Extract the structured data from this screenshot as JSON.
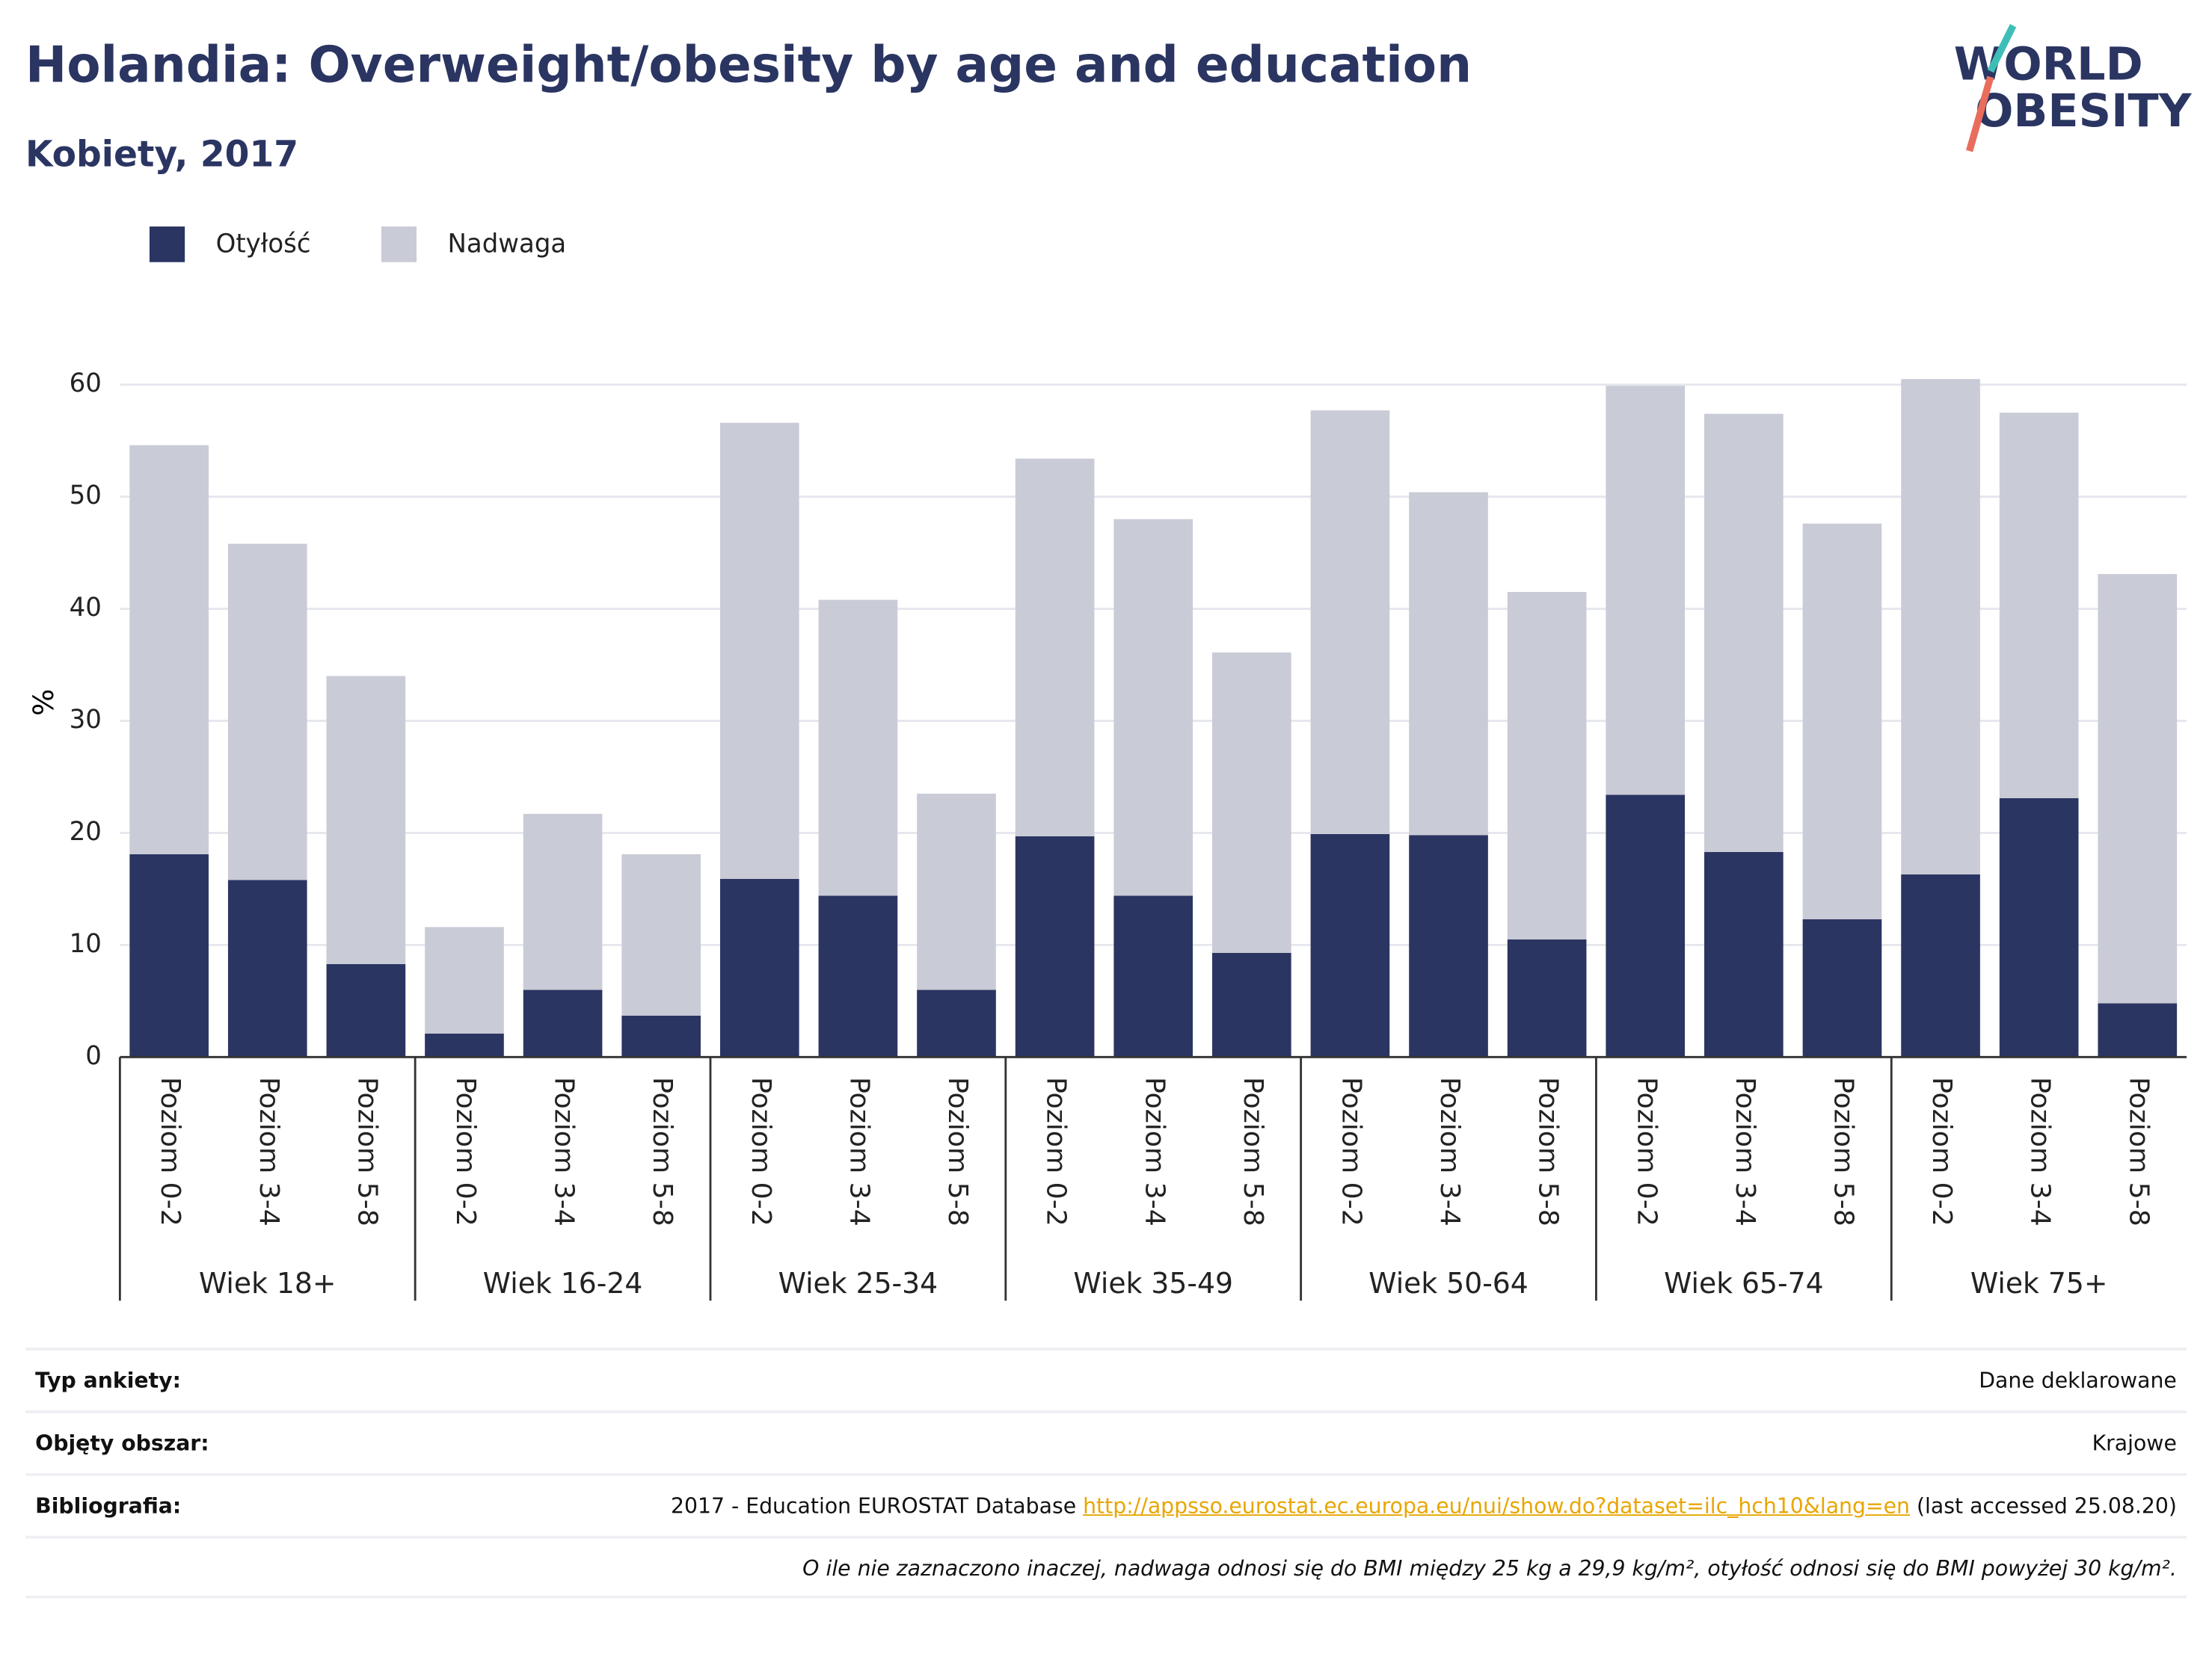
{
  "logo": [
    "WORLD",
    "OBESITY"
  ],
  "chart_data": {
    "type": "stacked_bar",
    "title": "Holandia: Overweight/obesity by age and education",
    "subtitle": "Kobiety, 2017",
    "ylabel": "%",
    "groups": [
      "Wiek 18+",
      "Wiek 16-24",
      "Wiek 25-34",
      "Wiek 35-49",
      "Wiek 50-64",
      "Wiek 65-74",
      "Wiek 75+"
    ],
    "categories": [
      "Poziom 0-2",
      "Poziom 3-4",
      "Poziom 5-8",
      "Poziom 0-2",
      "Poziom 3-4",
      "Poziom 5-8",
      "Poziom 0-2",
      "Poziom 3-4",
      "Poziom 5-8",
      "Poziom 0-2",
      "Poziom 3-4",
      "Poziom 5-8",
      "Poziom 0-2",
      "Poziom 3-4",
      "Poziom 5-8",
      "Poziom 0-2",
      "Poziom 3-4",
      "Poziom 5-8",
      "Poziom 0-2",
      "Poziom 3-4",
      "Poziom 5-8"
    ],
    "series": [
      {
        "name": "Otyłość",
        "color": "#2b3562",
        "values": [
          18.1,
          15.8,
          8.3,
          2.1,
          6.0,
          3.7,
          15.9,
          14.4,
          6.0,
          19.7,
          14.4,
          9.3,
          19.9,
          19.8,
          10.5,
          23.4,
          18.3,
          12.3,
          16.3,
          23.1,
          4.8
        ]
      },
      {
        "name": "Nadwaga",
        "color": "#c9cbd6",
        "values": [
          36.5,
          30.0,
          25.7,
          9.5,
          15.7,
          14.4,
          40.7,
          26.4,
          17.5,
          33.7,
          33.6,
          26.8,
          37.8,
          30.6,
          31.0,
          36.5,
          39.1,
          35.3,
          44.2,
          34.4,
          38.3
        ]
      }
    ],
    "ylim": [
      0,
      60
    ],
    "yticks": [
      0,
      10,
      20,
      30,
      40,
      50,
      60
    ],
    "grid": true,
    "legend": "top-left"
  },
  "footer": {
    "rows": [
      {
        "label": "Typ ankiety:",
        "value": "Dane deklarowane"
      },
      {
        "label": "Objęty obszar:",
        "value": "Krajowe"
      }
    ],
    "bibliography": {
      "label": "Bibliografia:",
      "text": "2017 - Education EUROSTAT Database",
      "link": "http://appsso.eurostat.ec.europa.eu/nui/show.do?dataset=ilc_hch10&lang=en",
      "suffix": "(last accessed 25.08.20)"
    },
    "note": "O ile nie zaznaczono inaczej, nadwaga odnosi się do BMI między 25 kg a 29,9 kg/m², otyłość odnosi się do BMI powyżej 30 kg/m²."
  }
}
